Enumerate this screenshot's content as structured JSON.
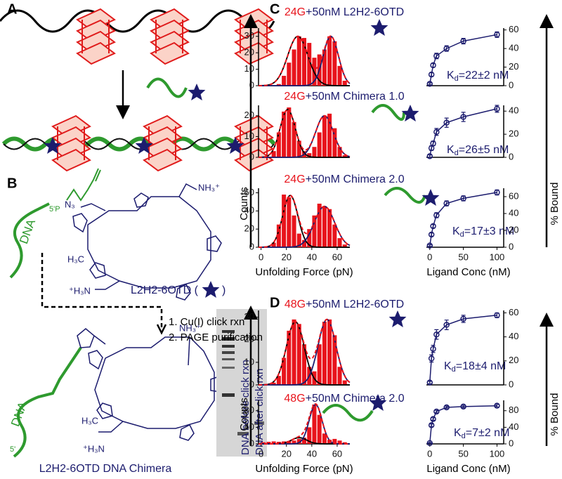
{
  "panel_labels": [
    "A",
    "B",
    "C",
    "D"
  ],
  "panel_b": {
    "dna_top": "DNA",
    "five_p": "5'P",
    "n3": "N₃",
    "nh3_top": "NH₃⁺",
    "h3c": "H₃C",
    "h3n": "⁺H₃N",
    "ligand_name": "L2H2-6OTD (",
    "ligand_close": ")",
    "step1": "1. Cu(I) click rxn",
    "step2": "2. PAGE purification",
    "dna_bottom": "DNA",
    "five_prime": "5'",
    "nh3_bottom": "NH₃⁺",
    "h3c_bottom": "H₃C",
    "h3n_bottom": "⁺H₃N",
    "chimera_name": "L2H2-6OTD DNA Chimera",
    "gel_lane1": "DNA before click rxn",
    "gel_lane2": "DNA after click rxn"
  },
  "panel_c": {
    "counts_label": "Counts",
    "bound_label": "% Bound",
    "force_label": "Unfolding Force (pN)",
    "conc_label": "Ligand Conc (nM)",
    "rows": [
      {
        "construct": "24G",
        "condition": "+50nM L2H2-6OTD",
        "histogram": {
          "xlim": [
            -2,
            70
          ],
          "ylim": [
            0,
            35
          ],
          "yticks": [
            0,
            10,
            20,
            30
          ],
          "bin_width": 4,
          "bin_centers": [
            14,
            18,
            22,
            26,
            30,
            34,
            38,
            42,
            46,
            50,
            54,
            58,
            62,
            66
          ],
          "counts": [
            1,
            6,
            14,
            22,
            30,
            29,
            26,
            17,
            19,
            22,
            30,
            27,
            12,
            3
          ],
          "fits": [
            {
              "mu": 29,
              "sigma": 8,
              "amp": 30,
              "color": "#000000"
            },
            {
              "mu": 55,
              "sigma": 6,
              "amp": 30,
              "color": "#1c1c6e"
            }
          ]
        },
        "binding": {
          "xlim": [
            -5,
            110
          ],
          "ylim": [
            0,
            62
          ],
          "yticks": [
            0,
            20,
            40,
            60
          ],
          "x": [
            0,
            2.5,
            5,
            10,
            25,
            50,
            100
          ],
          "values": [
            2,
            12,
            22,
            32,
            40,
            48,
            55
          ],
          "errors": [
            1,
            2,
            2,
            3,
            3,
            3,
            3
          ]
        },
        "kd": {
          "symbol": "K",
          "subscript": "d",
          "text": "=22±2 nM"
        }
      },
      {
        "construct": "24G",
        "condition": "+50nM Chimera 1.0",
        "histogram": {
          "xlim": [
            -2,
            70
          ],
          "ylim": [
            0,
            25
          ],
          "yticks": [
            0,
            10,
            20
          ],
          "bin_width": 4,
          "bin_centers": [
            10,
            14,
            18,
            22,
            26,
            30,
            34,
            38,
            42,
            46,
            50,
            54,
            58,
            62,
            66
          ],
          "counts": [
            3,
            12,
            22,
            24,
            17,
            8,
            3,
            2,
            5,
            12,
            20,
            21,
            14,
            5,
            1
          ],
          "fits": [
            {
              "mu": 21,
              "sigma": 6,
              "amp": 23,
              "color": "#000000"
            },
            {
              "mu": 50,
              "sigma": 7,
              "amp": 20,
              "color": "#1c1c6e"
            }
          ]
        },
        "binding": {
          "xlim": [
            -5,
            110
          ],
          "ylim": [
            0,
            45
          ],
          "yticks": [
            0,
            20,
            40
          ],
          "x": [
            0,
            2.5,
            5,
            10,
            25,
            50,
            100
          ],
          "values": [
            1,
            8,
            12,
            22,
            30,
            35,
            42
          ],
          "errors": [
            1,
            2,
            2,
            3,
            4,
            4,
            3
          ]
        },
        "kd": {
          "symbol": "K",
          "subscript": "d",
          "text": "=26±5 nM"
        }
      },
      {
        "construct": "24G",
        "condition": "+50nM Chimera 2.0",
        "histogram": {
          "xlim": [
            -2,
            70
          ],
          "ylim": [
            0,
            65
          ],
          "yticks": [
            0,
            20,
            40,
            60
          ],
          "xticks": [
            0,
            20,
            40,
            60
          ],
          "bin_width": 4,
          "bin_centers": [
            10,
            14,
            18,
            22,
            26,
            30,
            34,
            38,
            42,
            46,
            50,
            54,
            58,
            62,
            66
          ],
          "counts": [
            5,
            25,
            58,
            55,
            35,
            15,
            8,
            20,
            35,
            48,
            45,
            42,
            25,
            10,
            3
          ],
          "fits": [
            {
              "mu": 23,
              "sigma": 6,
              "amp": 57,
              "color": "#000000"
            },
            {
              "mu": 50,
              "sigma": 8,
              "amp": 45,
              "color": "#1c1c6e"
            }
          ]
        },
        "binding": {
          "xlim": [
            -5,
            110
          ],
          "ylim": [
            0,
            70
          ],
          "yticks": [
            0,
            20,
            40,
            60
          ],
          "xticks": [
            0,
            50,
            100
          ],
          "x": [
            0,
            2.5,
            5,
            10,
            25,
            50,
            100
          ],
          "values": [
            2,
            15,
            25,
            38,
            52,
            58,
            65
          ],
          "errors": [
            1,
            2,
            2,
            3,
            3,
            3,
            3
          ]
        },
        "kd": {
          "symbol": "K",
          "subscript": "d",
          "text": "=17±3 nM"
        }
      }
    ]
  },
  "panel_d": {
    "counts_label": "Counts",
    "bound_label": "% Bound",
    "force_label": "Unfolding Force (pN)",
    "conc_label": "Ligand Conc (nM)",
    "rows": [
      {
        "construct": "48G",
        "condition": "+50nM L2H2-6OTD",
        "histogram": {
          "xlim": [
            -2,
            70
          ],
          "ylim": [
            0,
            33
          ],
          "yticks": [
            0,
            10,
            20,
            30
          ],
          "bin_width": 4,
          "bin_centers": [
            10,
            14,
            18,
            22,
            26,
            30,
            34,
            38,
            42,
            46,
            50,
            54,
            58,
            62,
            66
          ],
          "counts": [
            1,
            4,
            12,
            24,
            29,
            27,
            18,
            8,
            6,
            18,
            28,
            29,
            22,
            8,
            2
          ],
          "fits": [
            {
              "mu": 27,
              "sigma": 7,
              "amp": 28,
              "color": "#000000"
            },
            {
              "mu": 52,
              "sigma": 7,
              "amp": 29,
              "color": "#1c1c6e"
            }
          ]
        },
        "binding": {
          "xlim": [
            -5,
            110
          ],
          "ylim": [
            0,
            62
          ],
          "yticks": [
            0,
            20,
            40,
            60
          ],
          "x": [
            0,
            2.5,
            5,
            10,
            25,
            50,
            100
          ],
          "values": [
            2,
            22,
            30,
            42,
            50,
            55,
            58
          ],
          "errors": [
            1,
            3,
            3,
            4,
            4,
            3,
            2
          ]
        },
        "kd": {
          "symbol": "K",
          "subscript": "d",
          "text": "=18±4 nM"
        }
      },
      {
        "construct": "48G",
        "condition": "+50nM Chimera 2.0",
        "histogram": {
          "xlim": [
            -2,
            70
          ],
          "ylim": [
            0,
            105
          ],
          "yticks": [
            0,
            40,
            80
          ],
          "xticks": [
            0,
            20,
            40,
            60
          ],
          "bin_width": 4,
          "bin_centers": [
            2,
            6,
            10,
            14,
            18,
            22,
            26,
            30,
            34,
            38,
            42,
            46,
            50,
            54,
            58,
            62,
            66
          ],
          "counts": [
            4,
            5,
            6,
            5,
            6,
            7,
            8,
            12,
            15,
            40,
            95,
            70,
            25,
            10,
            12,
            8,
            4
          ],
          "fits": [
            {
              "mu": 30,
              "sigma": 6,
              "amp": 15,
              "color": "#000000"
            },
            {
              "mu": 43,
              "sigma": 5,
              "amp": 95,
              "color": "#1c1c6e"
            }
          ]
        },
        "binding": {
          "xlim": [
            -5,
            110
          ],
          "ylim": [
            0,
            105
          ],
          "yticks": [
            0,
            40,
            80
          ],
          "xticks": [
            0,
            50,
            100
          ],
          "x": [
            0,
            2.5,
            5,
            10,
            25,
            50,
            100
          ],
          "values": [
            2,
            45,
            60,
            78,
            88,
            90,
            92
          ],
          "errors": [
            1,
            3,
            3,
            3,
            3,
            3,
            3
          ]
        },
        "kd": {
          "symbol": "K",
          "subscript": "d",
          "text": "=7±2 nM"
        }
      }
    ]
  }
}
